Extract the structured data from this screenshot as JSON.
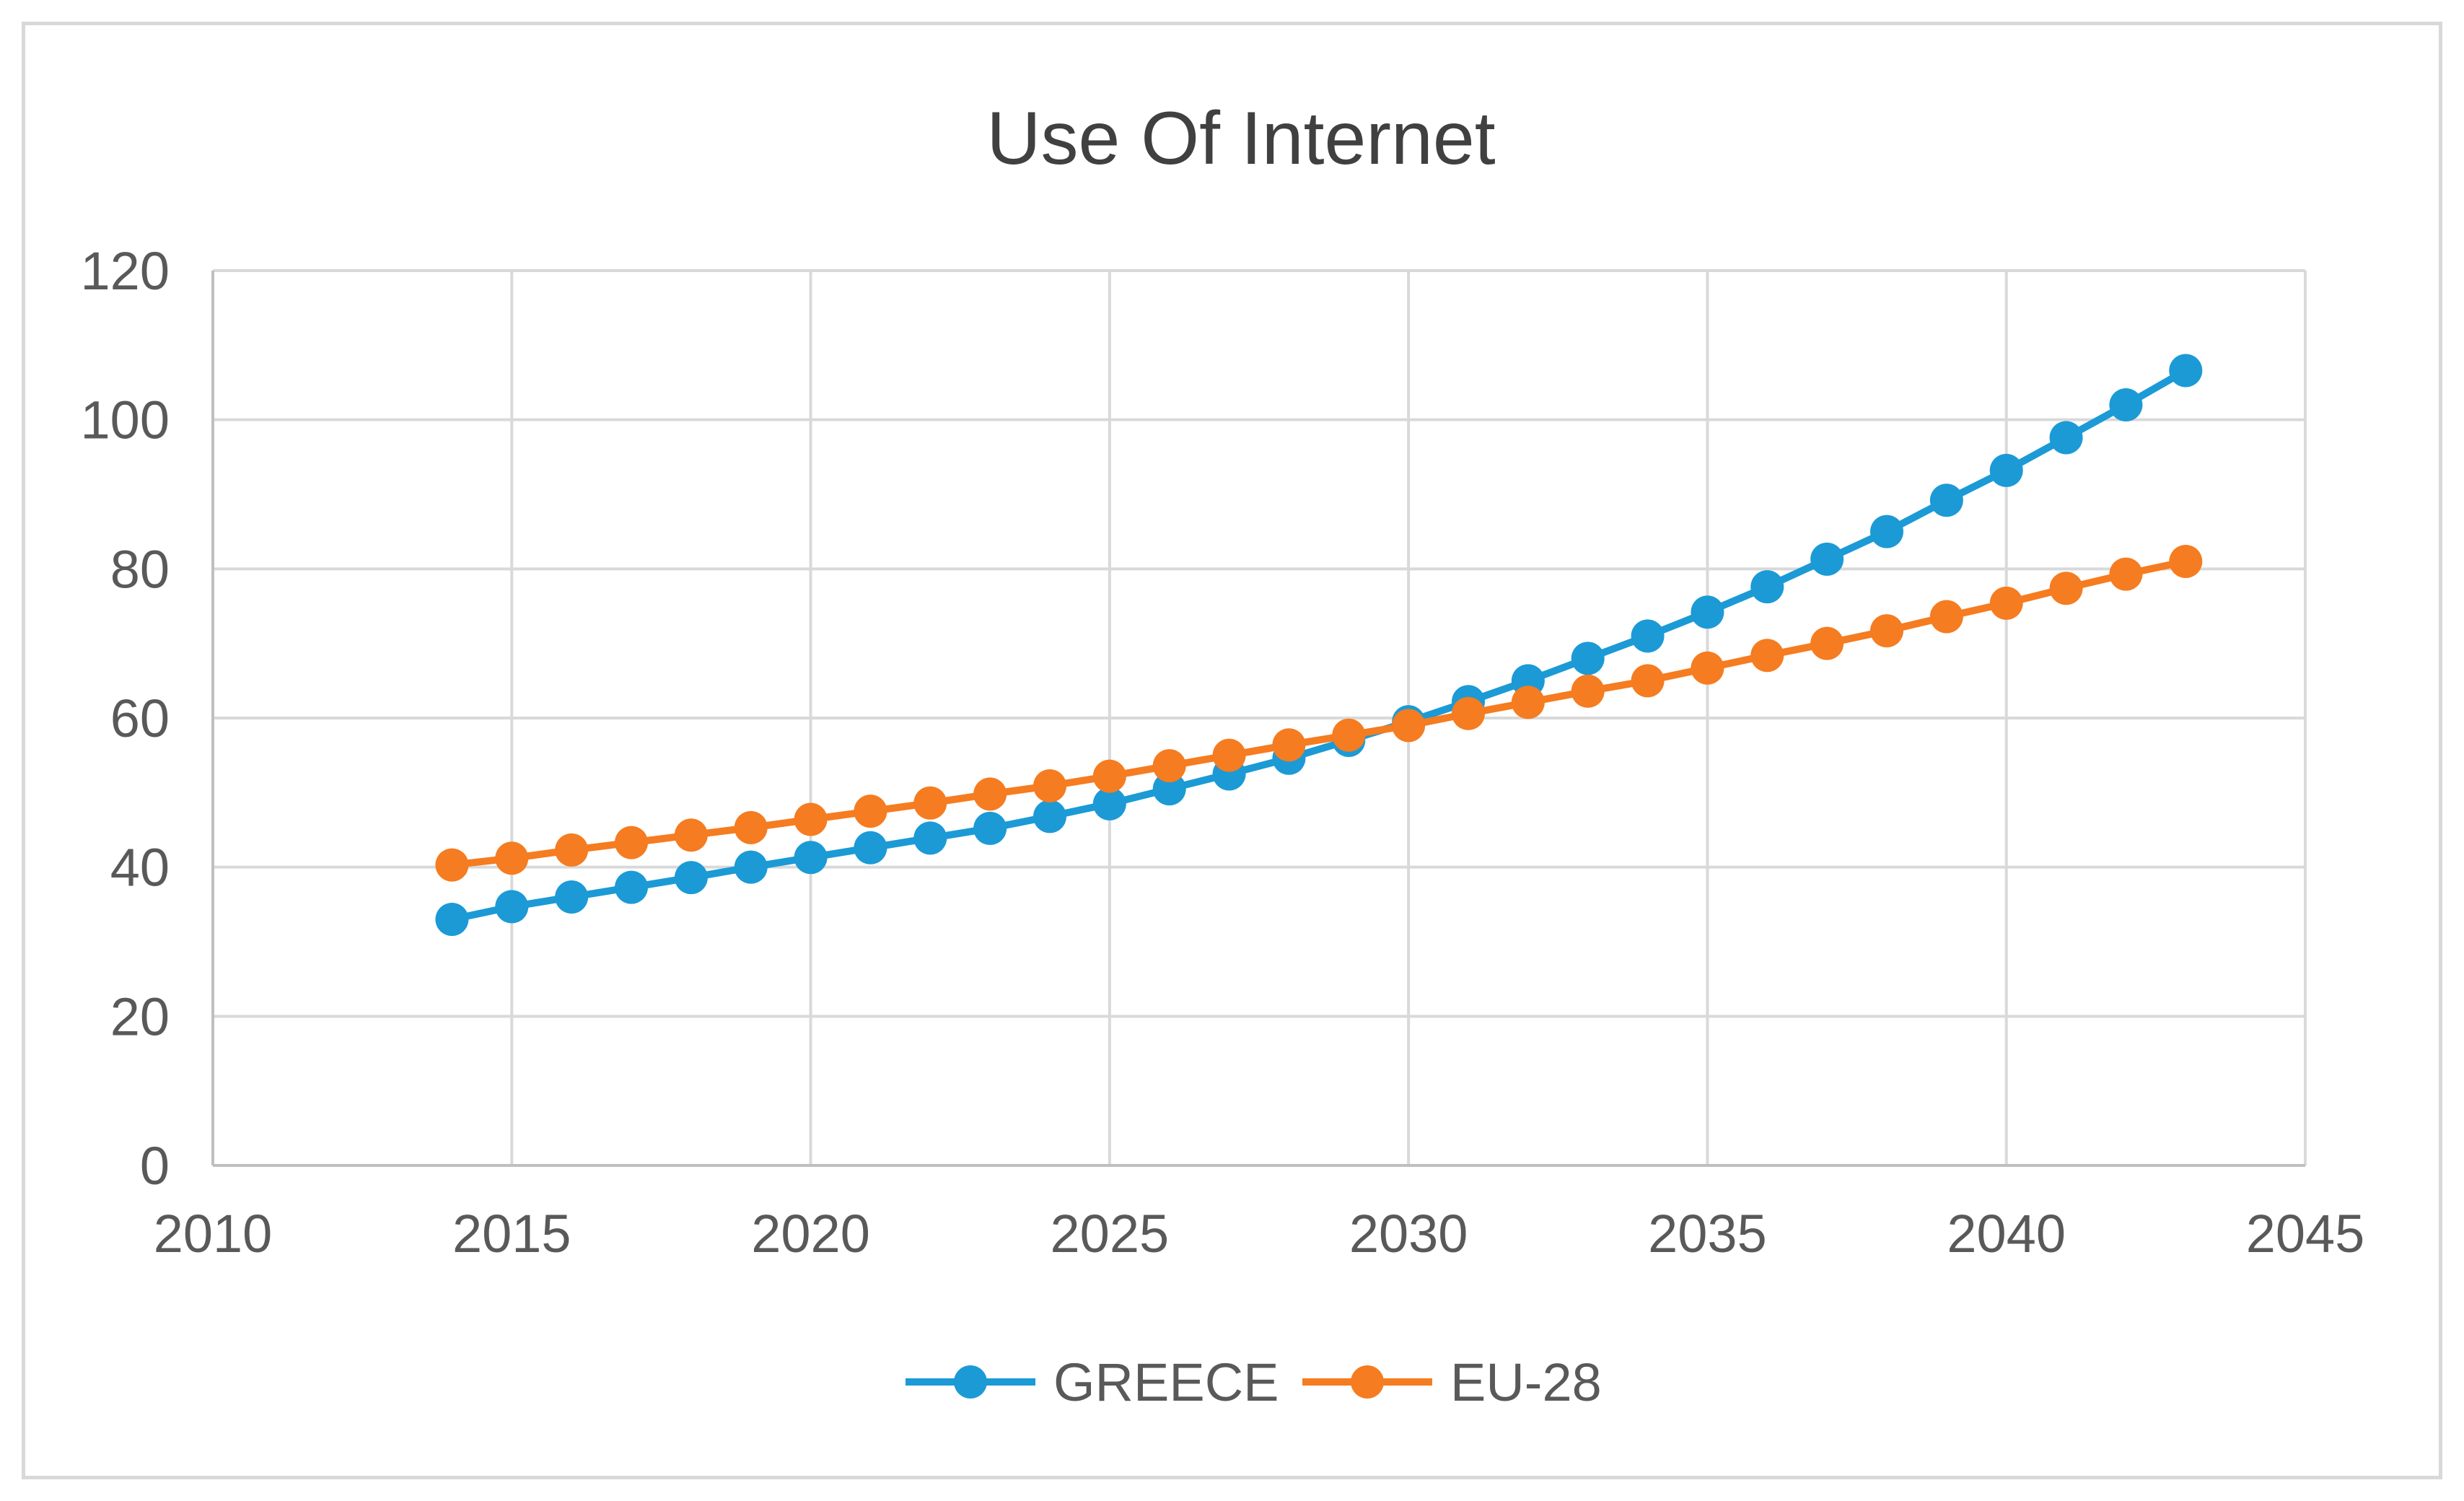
{
  "chart_data": {
    "type": "scatter",
    "title": "Use Of Internet",
    "xlabel": "",
    "ylabel": "",
    "xlim": [
      2010,
      2045
    ],
    "ylim": [
      0,
      120
    ],
    "xticks": [
      2010,
      2015,
      2020,
      2025,
      2030,
      2035,
      2040,
      2045
    ],
    "yticks": [
      0,
      20,
      40,
      60,
      80,
      100,
      120
    ],
    "grid": true,
    "legend_position": "bottom",
    "series": [
      {
        "name": "GREECE",
        "color": "#1b9ad6",
        "x": [
          2014,
          2015,
          2016,
          2017,
          2018,
          2019,
          2020,
          2021,
          2022,
          2023,
          2024,
          2025,
          2026,
          2027,
          2028,
          2029,
          2030,
          2031,
          2032,
          2033,
          2034,
          2035,
          2036,
          2037,
          2038,
          2039,
          2040,
          2041,
          2042,
          2043
        ],
        "values": [
          33.0,
          34.7,
          36.0,
          37.3,
          38.6,
          40.0,
          41.3,
          42.6,
          43.9,
          45.2,
          46.8,
          48.5,
          50.5,
          52.5,
          54.6,
          57.0,
          59.5,
          62.2,
          65.0,
          68.0,
          71.0,
          74.2,
          77.6,
          81.3,
          85.0,
          89.2,
          93.2,
          97.6,
          102.0,
          106.6
        ]
      },
      {
        "name": "EU-28",
        "color": "#f57c20",
        "x": [
          2014,
          2015,
          2016,
          2017,
          2018,
          2019,
          2020,
          2021,
          2022,
          2023,
          2024,
          2025,
          2026,
          2027,
          2028,
          2029,
          2030,
          2031,
          2032,
          2033,
          2034,
          2035,
          2036,
          2037,
          2038,
          2039,
          2040,
          2041,
          2042,
          2043
        ],
        "values": [
          40.3,
          41.2,
          42.3,
          43.3,
          44.3,
          45.3,
          46.4,
          47.5,
          48.6,
          49.8,
          50.9,
          52.2,
          53.6,
          55.0,
          56.4,
          57.7,
          59.0,
          60.6,
          62.1,
          63.6,
          65.0,
          66.7,
          68.4,
          70.0,
          71.7,
          73.6,
          75.4,
          77.4,
          79.3,
          81.0
        ]
      }
    ]
  }
}
